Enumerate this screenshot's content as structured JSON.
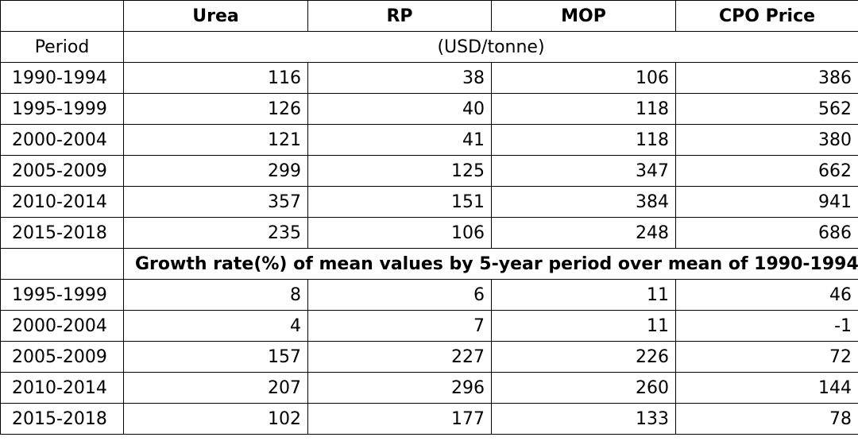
{
  "table": {
    "headers": [
      "",
      "Urea",
      "RP",
      "MOP",
      "CPO Price"
    ],
    "period_label": "Period",
    "unit_label": "(USD/tonne)",
    "rows": [
      [
        "1990-1994",
        "116",
        "38",
        "106",
        "386"
      ],
      [
        "1995-1999",
        "126",
        "40",
        "118",
        "562"
      ],
      [
        "2000-2004",
        "121",
        "41",
        "118",
        "380"
      ],
      [
        "2005-2009",
        "299",
        "125",
        "347",
        "662"
      ],
      [
        "2010-2014",
        "357",
        "151",
        "384",
        "941"
      ],
      [
        "2015-2018",
        "235",
        "106",
        "248",
        "686"
      ]
    ],
    "growth_label": "Growth rate(%) of mean values by 5-year period over mean of 1990-1994",
    "growth_rows": [
      [
        "1995-1999",
        "8",
        "6",
        "11",
        "46"
      ],
      [
        "2000-2004",
        "4",
        "7",
        "11",
        "-1"
      ],
      [
        "2005-2009",
        "157",
        "227",
        "226",
        "72"
      ],
      [
        "2010-2014",
        "207",
        "296",
        "260",
        "144"
      ],
      [
        "2015-2018",
        "102",
        "177",
        "133",
        "78"
      ]
    ]
  }
}
